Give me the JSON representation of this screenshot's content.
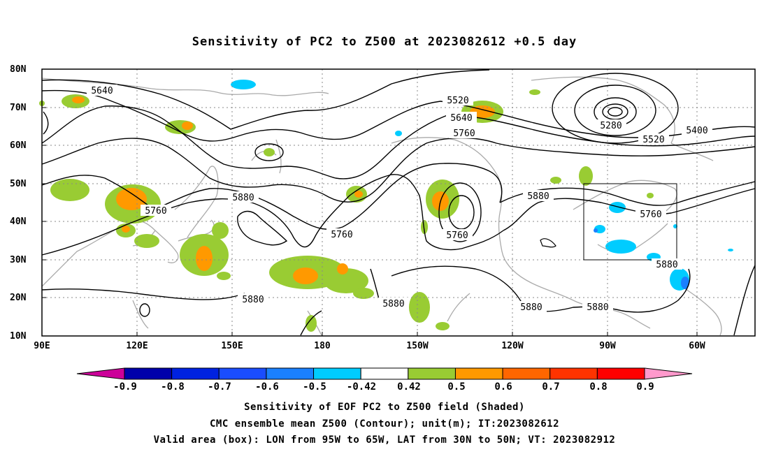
{
  "title": "Sensitivity of PC2 to Z500 at 2023082612 +0.5 day",
  "lat_labels": [
    "80N",
    "70N",
    "60N",
    "50N",
    "40N",
    "30N",
    "20N",
    "10N"
  ],
  "lon_labels": [
    "90E",
    "120E",
    "150E",
    "180",
    "150W",
    "120W",
    "90W",
    "60W"
  ],
  "colorbar": {
    "labels": [
      "-0.9",
      "-0.8",
      "-0.7",
      "-0.6",
      "-0.5",
      "-0.42",
      "0.42",
      "0.5",
      "0.6",
      "0.7",
      "0.8",
      "0.9"
    ],
    "colors": [
      "#cc0099",
      "#0000aa",
      "#0022e0",
      "#1a4dff",
      "#1a80ff",
      "#00ccff",
      "#ffffff",
      "#99cc33",
      "#ff9900",
      "#ff6600",
      "#ff3300",
      "#ff0000",
      "#ff99cc"
    ]
  },
  "contour_labels": {
    "c5640a": "5640",
    "c5520": "5520",
    "c5640b": "5640",
    "c5760a": "5760",
    "c5280": "5280",
    "c5400": "5400",
    "c5520b": "5520",
    "c5880a": "5880",
    "c5760b": "5760",
    "c5760c": "5760",
    "c5880b": "5880",
    "c5760d": "5760",
    "c5760e": "5760",
    "c5880c": "5880",
    "c5880d": "5880",
    "c5880e": "5880",
    "c5880f": "5880",
    "c5880g": "5880"
  },
  "captions": {
    "line1": "Sensitivity of EOF PC2 to Z500 field (Shaded)",
    "line2": "CMC ensemble mean Z500 (Contour); unit(m); IT:2023082612",
    "line3": "Valid area (box): LON from 95W to 65W, LAT from 30N to 50N; VT: 2023082912"
  }
}
